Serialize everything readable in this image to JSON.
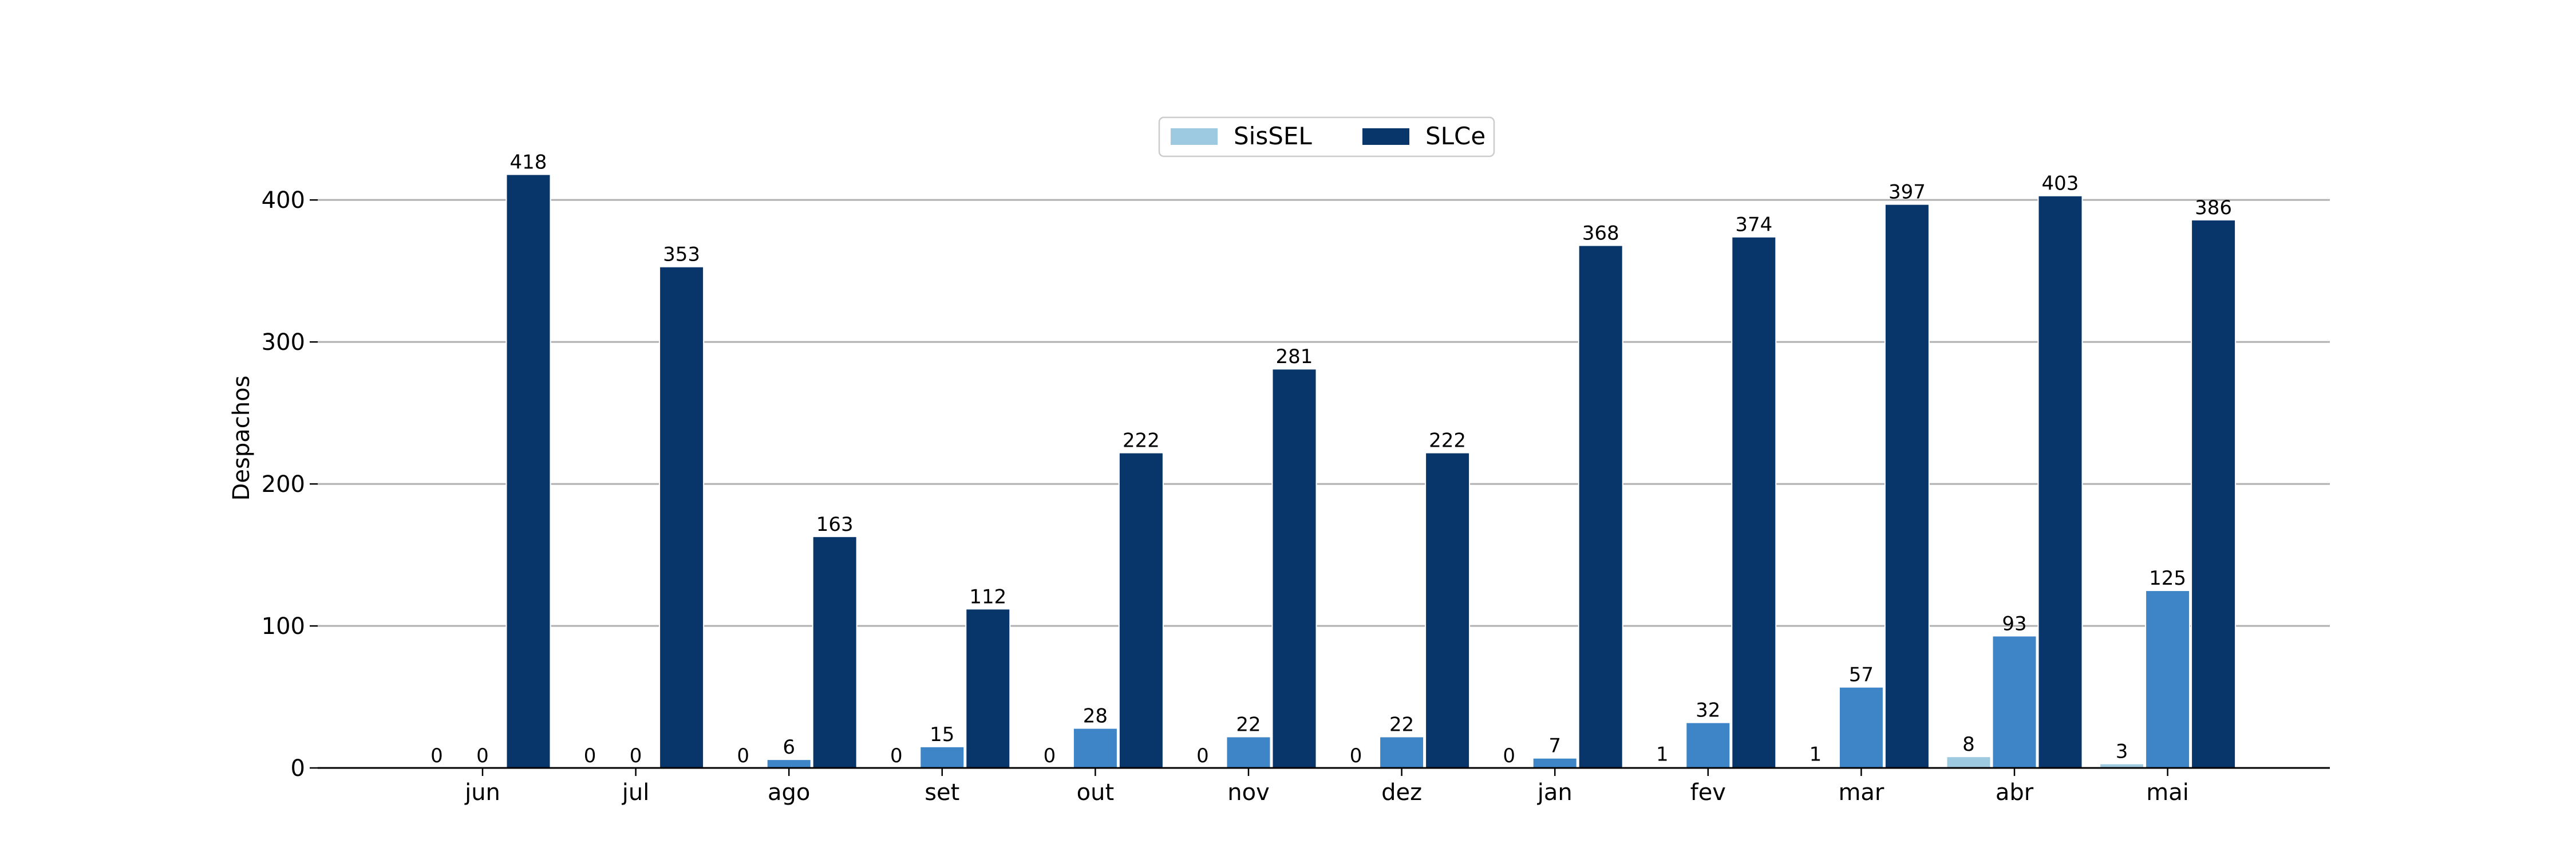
{
  "chart_data": {
    "type": "bar",
    "title": "",
    "xlabel": "",
    "ylabel": "Despachos",
    "ylim": [
      0,
      440
    ],
    "yticks": [
      0,
      100,
      200,
      300,
      400
    ],
    "grid": true,
    "legend_position": "top-center",
    "categories": [
      "jun",
      "jul",
      "ago",
      "set",
      "out",
      "nov",
      "dez",
      "jan",
      "fev",
      "mar",
      "abr",
      "mai"
    ],
    "series": [
      {
        "name": "SisSEL",
        "color": "#9ecae1",
        "values": [
          0,
          0,
          0,
          0,
          0,
          0,
          0,
          0,
          1,
          1,
          8,
          3
        ],
        "labels": [
          "0",
          "0",
          "0",
          "0",
          "0",
          "0",
          "0",
          "0",
          "1",
          "1",
          "8",
          "3"
        ],
        "in_legend": true
      },
      {
        "name": "",
        "color": "#3d85c6",
        "values": [
          0,
          0,
          6,
          15,
          28,
          22,
          22,
          7,
          32,
          57,
          93,
          125
        ],
        "labels": [
          "0",
          "0",
          "6",
          "15",
          "28",
          "22",
          "22",
          "7",
          "32",
          "57",
          "93",
          "125"
        ],
        "in_legend": false
      },
      {
        "name": "SLCe",
        "color": "#08366a",
        "values": [
          418,
          353,
          163,
          112,
          222,
          281,
          222,
          368,
          374,
          397,
          403,
          386
        ],
        "labels": [
          "418",
          "353",
          "163",
          "112",
          "222",
          "281",
          "222",
          "368",
          "374",
          "397",
          "403",
          "386"
        ],
        "in_legend": true
      }
    ]
  }
}
